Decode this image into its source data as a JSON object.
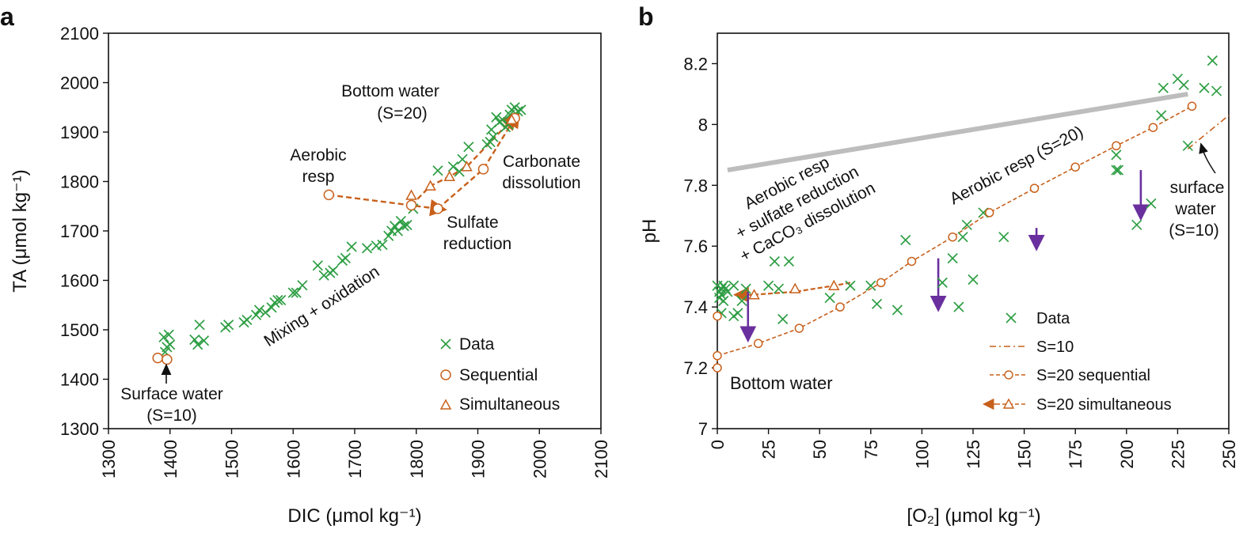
{
  "colors": {
    "data": "#2e9e44",
    "model": "#c8601b",
    "arrow": "#6a2f9e",
    "grey": "#bdbdbd",
    "axis": "#111111"
  },
  "chart_data": [
    {
      "panel": "a",
      "type": "scatter",
      "xlabel": "DIC (μmol kg⁻¹)",
      "ylabel": "TA (μmol kg⁻¹)",
      "xlim": [
        1300,
        2100
      ],
      "ylim": [
        1300,
        2100
      ],
      "xticks": [
        "1300",
        "1400",
        "1500",
        "1600",
        "1700",
        "1800",
        "1900",
        "2000",
        "2100"
      ],
      "yticks": [
        "1300",
        "1400",
        "1500",
        "1600",
        "1700",
        "1800",
        "1900",
        "2000",
        "2100"
      ],
      "legend": [
        "Data",
        "Sequential",
        "Simultaneous"
      ],
      "annotations": {
        "bottom_water": "Bottom water",
        "bottom_s": "(S=20)",
        "aerobic": "Aerobic",
        "resp": "resp",
        "carbonate": "Carbonate",
        "dissolution": "dissolution",
        "sulfate": "Sulfate",
        "reduction": "reduction",
        "mixing": "Mixing + oxidation",
        "surface": "Surface water",
        "surface_s": "(S=10)"
      },
      "series": [
        {
          "name": "Data",
          "marker": "x",
          "points": [
            [
              1390,
              1485
            ],
            [
              1395,
              1465
            ],
            [
              1398,
              1490
            ],
            [
              1392,
              1455
            ],
            [
              1400,
              1470
            ],
            [
              1440,
              1480
            ],
            [
              1445,
              1470
            ],
            [
              1448,
              1510
            ],
            [
              1455,
              1478
            ],
            [
              1490,
              1505
            ],
            [
              1495,
              1510
            ],
            [
              1520,
              1515
            ],
            [
              1525,
              1520
            ],
            [
              1540,
              1530
            ],
            [
              1545,
              1540
            ],
            [
              1555,
              1535
            ],
            [
              1565,
              1545
            ],
            [
              1570,
              1555
            ],
            [
              1575,
              1560
            ],
            [
              1580,
              1560
            ],
            [
              1600,
              1575
            ],
            [
              1605,
              1575
            ],
            [
              1615,
              1590
            ],
            [
              1640,
              1630
            ],
            [
              1650,
              1610
            ],
            [
              1660,
              1615
            ],
            [
              1665,
              1620
            ],
            [
              1680,
              1640
            ],
            [
              1685,
              1645
            ],
            [
              1695,
              1668
            ],
            [
              1720,
              1665
            ],
            [
              1735,
              1670
            ],
            [
              1745,
              1672
            ],
            [
              1755,
              1690
            ],
            [
              1760,
              1700
            ],
            [
              1765,
              1710
            ],
            [
              1770,
              1700
            ],
            [
              1775,
              1720
            ],
            [
              1780,
              1710
            ],
            [
              1785,
              1712
            ],
            [
              1795,
              1745
            ],
            [
              1835,
              1822
            ],
            [
              1860,
              1830
            ],
            [
              1870,
              1820
            ],
            [
              1875,
              1845
            ],
            [
              1885,
              1870
            ],
            [
              1915,
              1875
            ],
            [
              1920,
              1880
            ],
            [
              1925,
              1890
            ],
            [
              1930,
              1930
            ],
            [
              1935,
              1920
            ],
            [
              1940,
              1925
            ],
            [
              1945,
              1910
            ],
            [
              1950,
              1915
            ],
            [
              1952,
              1935
            ],
            [
              1955,
              1945
            ],
            [
              1960,
              1950
            ],
            [
              1965,
              1942
            ],
            [
              1970,
              1945
            ],
            [
              1922,
              1905
            ]
          ]
        },
        {
          "name": "Sequential",
          "marker": "o",
          "line": [
            [
              1658,
              1773
            ],
            [
              1835,
              1745
            ],
            [
              1909,
              1825
            ],
            [
              1960,
              1928
            ]
          ],
          "points": [
            [
              1380,
              1443
            ],
            [
              1395,
              1440
            ],
            [
              1658,
              1773
            ],
            [
              1792,
              1752
            ],
            [
              1835,
              1745
            ],
            [
              1909,
              1825
            ],
            [
              1960,
              1928
            ]
          ]
        },
        {
          "name": "Simultaneous",
          "marker": "^",
          "line": [
            [
              1792,
              1752
            ],
            [
              1823,
              1791
            ],
            [
              1854,
              1810
            ],
            [
              1882,
              1830
            ],
            [
              1955,
              1925
            ]
          ],
          "points": [
            [
              1792,
              1772
            ],
            [
              1823,
              1791
            ],
            [
              1854,
              1810
            ],
            [
              1882,
              1830
            ],
            [
              1955,
              1925
            ]
          ]
        }
      ]
    },
    {
      "panel": "b",
      "type": "scatter",
      "xlabel": "[O₂] (μmol kg⁻¹)",
      "ylabel": "pH",
      "xlim": [
        0,
        250
      ],
      "ylim": [
        7.0,
        8.3
      ],
      "xticks": [
        "0",
        "25",
        "50",
        "75",
        "100",
        "125",
        "150",
        "175",
        "200",
        "225",
        "250"
      ],
      "yticks": [
        "7",
        "7.2",
        "7.4",
        "7.6",
        "7.8",
        "8",
        "8.2"
      ],
      "legend": [
        "Data",
        "S=10",
        "S=20 sequential",
        "S=20 simultaneous"
      ],
      "annotations": {
        "bottom_water": "Bottom water",
        "rot1": "Aerobic resp",
        "rot2": "+ sulfate reduction",
        "rot3": "+ CaCO₃ dissolution",
        "aerobic_s20": "Aerobic resp (S=20)",
        "surface": "surface",
        "water": "water",
        "surface_s": "(S=10)"
      },
      "series": [
        {
          "name": "Data",
          "marker": "x",
          "points": [
            [
              0,
              7.47
            ],
            [
              1,
              7.45
            ],
            [
              1,
              7.43
            ],
            [
              2,
              7.46
            ],
            [
              2,
              7.44
            ],
            [
              3,
              7.47
            ],
            [
              3,
              7.42
            ],
            [
              4,
              7.46
            ],
            [
              5,
              7.45
            ],
            [
              2,
              7.38
            ],
            [
              8,
              7.37
            ],
            [
              8,
              7.47
            ],
            [
              10,
              7.38
            ],
            [
              12,
              7.42
            ],
            [
              14,
              7.46
            ],
            [
              25,
              7.47
            ],
            [
              28,
              7.55
            ],
            [
              30,
              7.46
            ],
            [
              32,
              7.36
            ],
            [
              35,
              7.55
            ],
            [
              55,
              7.43
            ],
            [
              65,
              7.47
            ],
            [
              75,
              7.47
            ],
            [
              78,
              7.41
            ],
            [
              88,
              7.39
            ],
            [
              92,
              7.62
            ],
            [
              110,
              7.48
            ],
            [
              115,
              7.56
            ],
            [
              118,
              7.4
            ],
            [
              120,
              7.63
            ],
            [
              122,
              7.67
            ],
            [
              125,
              7.49
            ],
            [
              130,
              7.71
            ],
            [
              140,
              7.63
            ],
            [
              195,
              7.9
            ],
            [
              196,
              7.85
            ],
            [
              195,
              7.85
            ],
            [
              205,
              7.67
            ],
            [
              212,
              7.74
            ],
            [
              217,
              8.03
            ],
            [
              218,
              8.12
            ],
            [
              225,
              8.15
            ],
            [
              228,
              8.13
            ],
            [
              230,
              7.93
            ],
            [
              238,
              8.12
            ],
            [
              242,
              8.21
            ],
            [
              244,
              8.11
            ]
          ]
        },
        {
          "name": "S=10",
          "style": "dashdot",
          "line": [
            [
              230,
              7.92
            ],
            [
              250,
              8.03
            ]
          ]
        },
        {
          "name": "S=20 sequential",
          "style": "dashed",
          "marker": "o",
          "line": [
            [
              0,
              7.2
            ],
            [
              0,
              7.24
            ],
            [
              20,
              7.28
            ],
            [
              40,
              7.33
            ],
            [
              60,
              7.4
            ],
            [
              80,
              7.48
            ],
            [
              95,
              7.55
            ],
            [
              115,
              7.63
            ],
            [
              133,
              7.71
            ],
            [
              155,
              7.79
            ],
            [
              175,
              7.86
            ],
            [
              195,
              7.93
            ],
            [
              213,
              7.99
            ],
            [
              232,
              8.06
            ]
          ],
          "points": [
            [
              0,
              7.2
            ],
            [
              0,
              7.24
            ],
            [
              0,
              7.37
            ],
            [
              20,
              7.28
            ],
            [
              40,
              7.33
            ],
            [
              60,
              7.4
            ],
            [
              80,
              7.48
            ],
            [
              95,
              7.55
            ],
            [
              115,
              7.63
            ],
            [
              133,
              7.71
            ],
            [
              155,
              7.79
            ],
            [
              175,
              7.86
            ],
            [
              195,
              7.93
            ],
            [
              213,
              7.99
            ],
            [
              232,
              8.06
            ]
          ]
        },
        {
          "name": "S=20 simultaneous",
          "style": "dashed",
          "marker": "^",
          "line": [
            [
              65,
              7.48
            ],
            [
              57,
              7.47
            ],
            [
              38,
              7.45
            ],
            [
              17,
              7.44
            ],
            [
              12,
              7.44
            ]
          ],
          "points": [
            [
              57,
              7.47
            ],
            [
              38,
              7.46
            ],
            [
              18,
              7.44
            ]
          ]
        },
        {
          "name": "reference",
          "style": "thick-grey",
          "line": [
            [
              5,
              7.85
            ],
            [
              230,
              8.1
            ]
          ]
        },
        {
          "name": "arrows",
          "style": "arrows",
          "segments": [
            [
              15,
              7.45,
              15,
              7.31
            ],
            [
              108,
              7.56,
              108,
              7.41
            ],
            [
              156,
              7.66,
              156,
              7.61
            ],
            [
              207,
              7.85,
              207,
              7.71
            ]
          ]
        }
      ]
    }
  ]
}
